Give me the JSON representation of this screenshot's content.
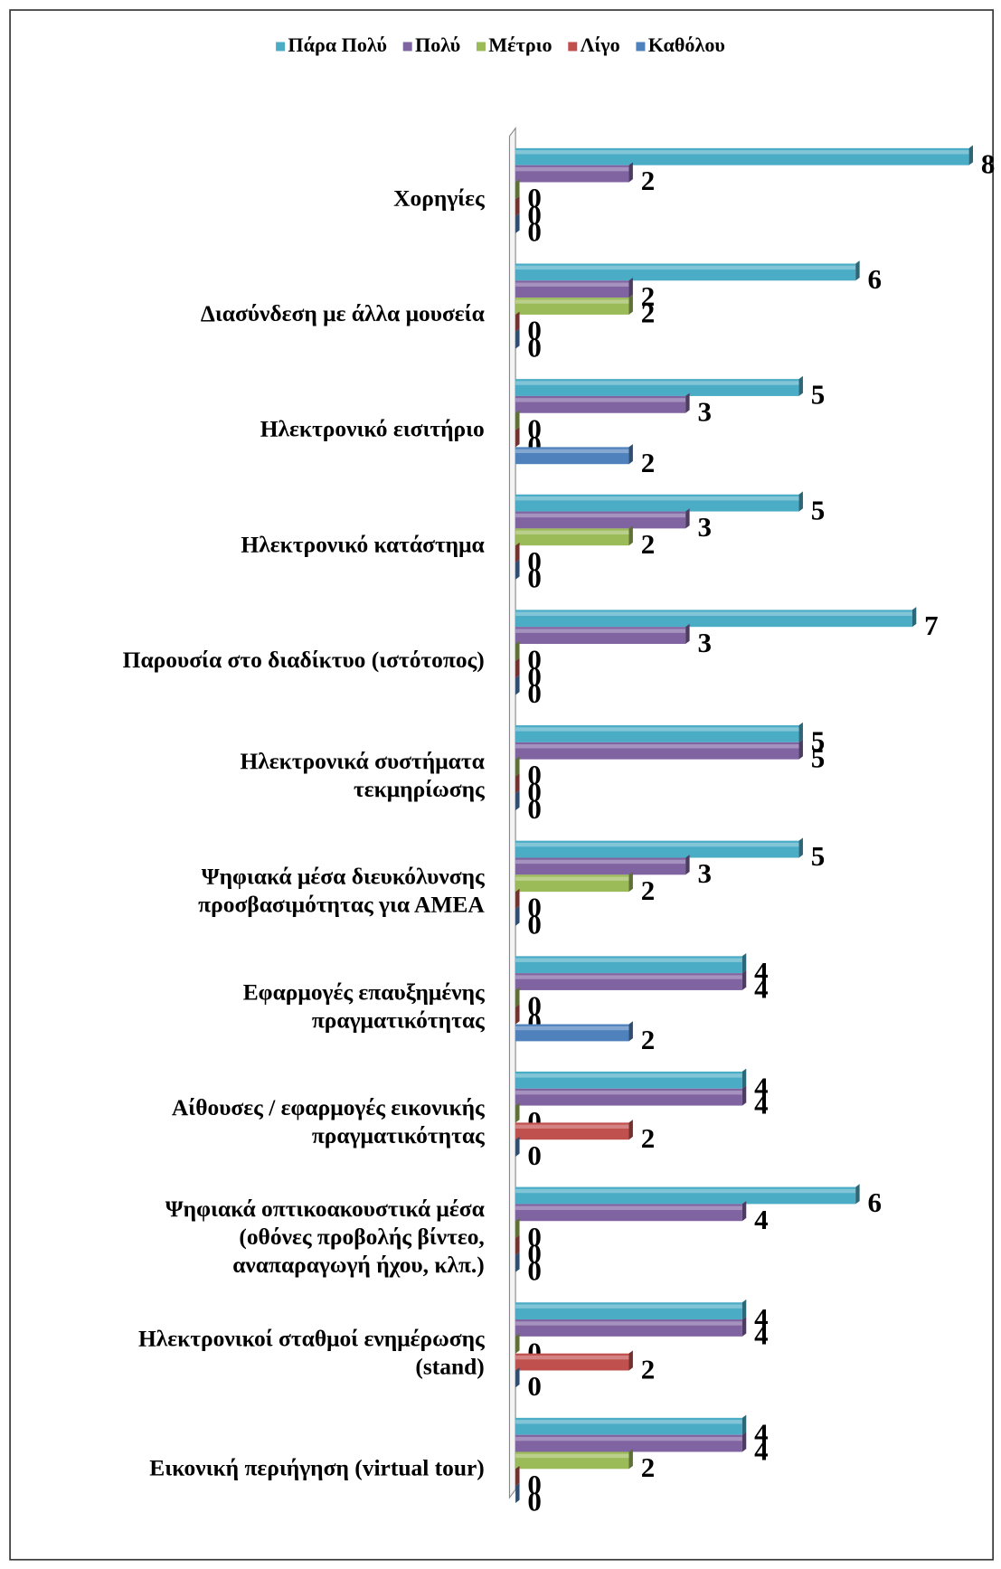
{
  "chart_data": {
    "type": "bar",
    "orientation": "horizontal",
    "categories": [
      "Χορηγίες",
      "Διασύνδεση με άλλα μουσεία",
      "Ηλεκτρονικό εισιτήριο",
      "Ηλεκτρονικό κατάστημα",
      "Παρουσία στο διαδίκτυο (ιστότοπος)",
      "Ηλεκτρονικά συστήματα\nτεκμηρίωσης",
      "Ψηφιακά μέσα διευκόλυνσης\nπροσβασιμότητας για ΑΜΕΑ",
      "Εφαρμογές επαυξημένης\nπραγματικότητας",
      "Αίθουσες / εφαρμογές εικονικής\nπραγματικότητας",
      "Ψηφιακά οπτικοακουστικά μέσα\n(οθόνες προβολής βίντεο,\nαναπαραγωγή ήχου, κλπ.)",
      "Ηλεκτρονικοί σταθμοί ενημέρωσης\n(stand)",
      "Εικονική περιήγηση (virtual tour)"
    ],
    "series": [
      {
        "name": "Πάρα Πολύ",
        "color": "#4bacc6",
        "values": [
          8,
          6,
          5,
          5,
          7,
          5,
          5,
          4,
          4,
          6,
          4,
          4
        ]
      },
      {
        "name": "Πολύ",
        "color": "#8064a2",
        "values": [
          2,
          2,
          3,
          3,
          3,
          5,
          3,
          4,
          4,
          4,
          4,
          4
        ]
      },
      {
        "name": "Μέτριο",
        "color": "#9bbb59",
        "values": [
          0,
          2,
          0,
          2,
          0,
          0,
          2,
          0,
          0,
          0,
          0,
          2
        ]
      },
      {
        "name": "Λίγο",
        "color": "#c0504d",
        "values": [
          0,
          0,
          0,
          0,
          0,
          0,
          0,
          0,
          2,
          0,
          2,
          0
        ]
      },
      {
        "name": "Καθόλου",
        "color": "#4f81bd",
        "values": [
          0,
          0,
          2,
          0,
          0,
          0,
          0,
          2,
          0,
          0,
          0,
          0
        ]
      }
    ],
    "xlim": [
      0,
      8
    ],
    "legend": "top"
  }
}
